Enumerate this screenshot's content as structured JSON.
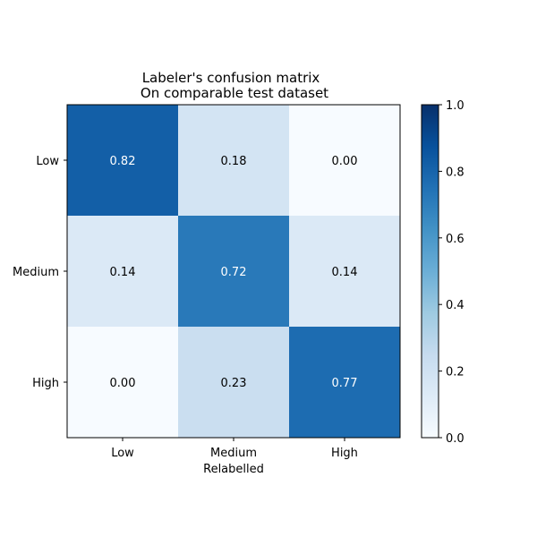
{
  "chart_data": {
    "type": "heatmap",
    "title": "Labeler's confusion matrix",
    "subtitle": "On comparable test dataset",
    "xlabel": "Relabelled",
    "ylabel": "",
    "x_categories": [
      "Low",
      "Medium",
      "High"
    ],
    "y_categories": [
      "Low",
      "Medium",
      "High"
    ],
    "values": [
      [
        0.82,
        0.18,
        0.0
      ],
      [
        0.14,
        0.72,
        0.14
      ],
      [
        0.0,
        0.23,
        0.77
      ]
    ],
    "value_labels": [
      [
        "0.82",
        "0.18",
        "0.00"
      ],
      [
        "0.14",
        "0.72",
        "0.14"
      ],
      [
        "0.00",
        "0.23",
        "0.77"
      ]
    ],
    "colormap": "Blues",
    "vmin": 0.0,
    "vmax": 1.0,
    "colorbar": {
      "ticks": [
        0.0,
        0.2,
        0.4,
        0.6,
        0.8,
        1.0
      ],
      "tick_labels": [
        "0.0",
        "0.2",
        "0.4",
        "0.6",
        "0.8",
        "1.0"
      ]
    },
    "grid": false
  }
}
